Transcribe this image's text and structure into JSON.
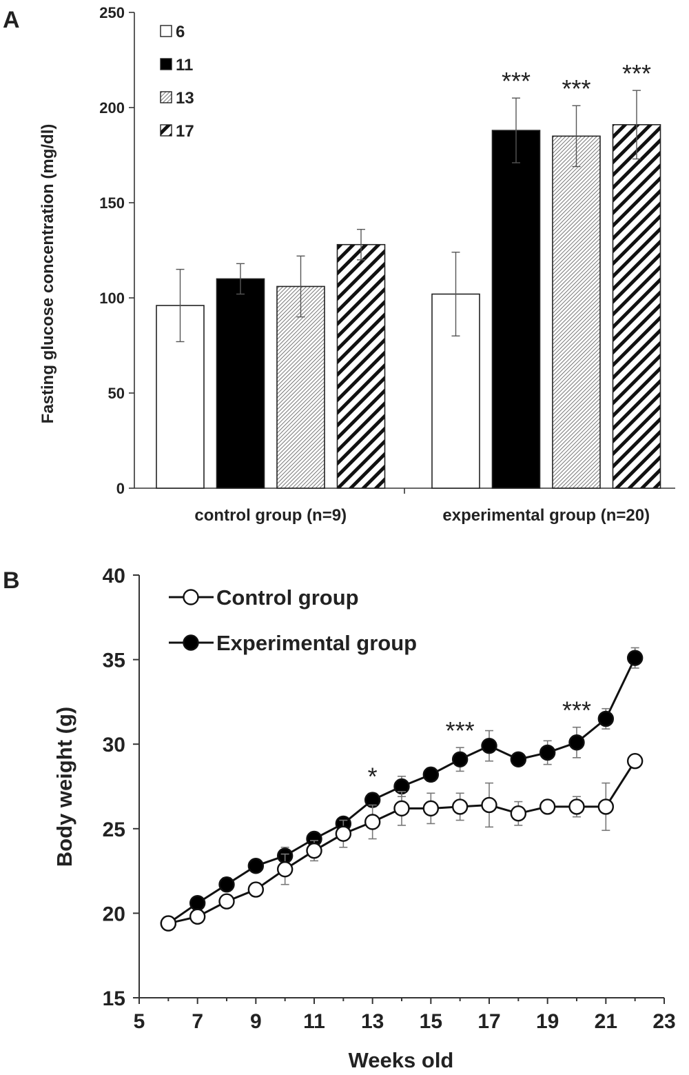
{
  "chart_data": [
    {
      "panel_label": "A",
      "type": "bar",
      "title": "",
      "xlabel": "",
      "ylabel": "Fasting glucose concentration (mg/dl)",
      "ylim": [
        0,
        250
      ],
      "yticks": [
        "0",
        "50",
        "100",
        "150",
        "200",
        "250"
      ],
      "categories": [
        "control group (n=9)",
        "experimental group (n=20)"
      ],
      "legend_position": "top-left",
      "series": [
        {
          "name": "6",
          "fill": "white",
          "values": [
            96,
            102
          ],
          "errors": [
            19,
            22
          ]
        },
        {
          "name": "11",
          "fill": "black",
          "values": [
            110,
            188
          ],
          "errors": [
            8,
            17
          ]
        },
        {
          "name": "13",
          "fill": "dotted",
          "values": [
            106,
            185
          ],
          "errors": [
            16,
            16
          ]
        },
        {
          "name": "17",
          "fill": "hatched",
          "values": [
            128,
            191
          ],
          "errors": [
            8,
            18
          ]
        }
      ],
      "annotations": [
        {
          "category_index": 1,
          "series_index": 1,
          "text": "***"
        },
        {
          "category_index": 1,
          "series_index": 2,
          "text": "***"
        },
        {
          "category_index": 1,
          "series_index": 3,
          "text": "***"
        }
      ]
    },
    {
      "panel_label": "B",
      "type": "line",
      "title": "",
      "xlabel": "Weeks old",
      "ylabel": "Body weight (g)",
      "xlim": [
        5,
        23
      ],
      "ylim": [
        15,
        40
      ],
      "xticks": [
        "5",
        "7",
        "9",
        "11",
        "13",
        "15",
        "17",
        "19",
        "21",
        "23"
      ],
      "yticks": [
        "15",
        "20",
        "25",
        "30",
        "35",
        "40"
      ],
      "legend_position": "top-left",
      "x": [
        6,
        7,
        8,
        9,
        10,
        11,
        12,
        13,
        14,
        15,
        16,
        17,
        18,
        19,
        20,
        21,
        22
      ],
      "series": [
        {
          "name": "Control group",
          "marker": "open-circle",
          "values": [
            19.4,
            19.8,
            20.7,
            21.4,
            22.6,
            23.7,
            24.7,
            25.4,
            26.2,
            26.2,
            26.3,
            26.4,
            25.9,
            26.3,
            26.3,
            26.3,
            29.0
          ],
          "errors": [
            0.3,
            0.3,
            0.3,
            0.4,
            0.9,
            0.6,
            0.8,
            1.0,
            1.0,
            0.9,
            0.8,
            1.3,
            0.7,
            0.4,
            0.6,
            1.4,
            0.3
          ]
        },
        {
          "name": "Experimental group",
          "marker": "filled-circle",
          "values": [
            19.4,
            20.6,
            21.7,
            22.8,
            23.4,
            24.4,
            25.3,
            26.7,
            27.5,
            28.2,
            29.1,
            29.9,
            29.1,
            29.5,
            30.1,
            31.5,
            35.1
          ],
          "errors": [
            0.3,
            0.3,
            0.4,
            0.3,
            0.5,
            0.3,
            0.3,
            0.4,
            0.6,
            0.4,
            0.7,
            0.9,
            0.3,
            0.7,
            0.9,
            0.6,
            0.6
          ]
        }
      ],
      "annotations": [
        {
          "x": 13,
          "text": "*"
        },
        {
          "x": 16,
          "text": "***"
        },
        {
          "x": 20,
          "text": "***"
        }
      ]
    }
  ]
}
